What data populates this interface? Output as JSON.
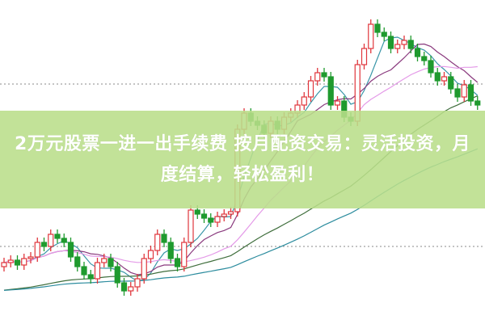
{
  "banner": {
    "title": "2万元股票一进一出手续费 按月配资交易：灵活投资，月度结算，轻松盈利！"
  },
  "chart_data": {
    "type": "candlestick",
    "title": "",
    "xlabel": "",
    "ylabel": "",
    "ylim": [
      0,
      400
    ],
    "grid": "two dotted horizontal lines",
    "up_color": "#e0363c",
    "down_color": "#1f9a2e",
    "moving_averages": [
      {
        "period": 5,
        "color": "#3a96a8"
      },
      {
        "period": 10,
        "color": "#8a3a7e"
      },
      {
        "period": 20,
        "color": "#e49ae8"
      },
      {
        "period": 40,
        "color": "#3f6e3c"
      },
      {
        "period": 60,
        "color": "#2c8c9e"
      }
    ],
    "gridlines": [
      296,
      95
    ],
    "open": [
      70,
      75,
      78,
      72,
      80,
      82,
      100,
      95,
      110,
      105,
      100,
      82,
      70,
      60,
      55,
      75,
      80,
      70,
      50,
      40,
      45,
      55,
      80,
      90,
      110,
      100,
      80,
      70,
      100,
      140,
      135,
      130,
      125,
      132,
      135,
      138,
      240,
      260,
      250,
      245,
      235,
      250,
      240,
      255,
      260,
      270,
      280,
      300,
      310,
      305,
      270,
      275,
      255,
      250,
      320,
      340,
      370,
      360,
      355,
      340,
      345,
      350,
      340,
      330,
      325,
      310,
      300,
      305,
      290,
      280,
      295,
      275
    ],
    "high": [
      81,
      84,
      84,
      86,
      88,
      106,
      106,
      116,
      116,
      111,
      106,
      88,
      76,
      66,
      81,
      86,
      86,
      76,
      56,
      51,
      61,
      86,
      96,
      116,
      116,
      106,
      86,
      106,
      146,
      146,
      141,
      136,
      138,
      141,
      144,
      246,
      266,
      266,
      256,
      251,
      256,
      256,
      261,
      266,
      276,
      286,
      306,
      316,
      316,
      311,
      281,
      281,
      261,
      326,
      346,
      376,
      376,
      366,
      361,
      351,
      356,
      356,
      346,
      336,
      331,
      316,
      311,
      311,
      296,
      301,
      301,
      281
    ],
    "low": [
      64,
      69,
      66,
      66,
      74,
      76,
      89,
      89,
      99,
      94,
      76,
      64,
      54,
      49,
      49,
      69,
      64,
      44,
      34,
      34,
      39,
      49,
      74,
      84,
      94,
      74,
      64,
      64,
      94,
      129,
      124,
      119,
      119,
      126,
      129,
      132,
      234,
      244,
      239,
      229,
      229,
      234,
      234,
      249,
      254,
      264,
      274,
      294,
      299,
      264,
      264,
      249,
      244,
      244,
      314,
      334,
      354,
      349,
      334,
      334,
      339,
      334,
      324,
      319,
      304,
      294,
      294,
      284,
      274,
      274,
      269,
      264
    ],
    "close": [
      75,
      78,
      72,
      80,
      82,
      100,
      95,
      110,
      105,
      100,
      82,
      70,
      60,
      55,
      75,
      80,
      70,
      50,
      40,
      45,
      55,
      80,
      90,
      110,
      100,
      80,
      70,
      100,
      140,
      135,
      130,
      125,
      132,
      135,
      138,
      240,
      260,
      250,
      245,
      235,
      250,
      240,
      255,
      260,
      270,
      280,
      300,
      310,
      305,
      270,
      275,
      255,
      250,
      320,
      340,
      370,
      360,
      355,
      340,
      345,
      350,
      340,
      330,
      325,
      310,
      300,
      305,
      290,
      280,
      295,
      275,
      270
    ]
  }
}
